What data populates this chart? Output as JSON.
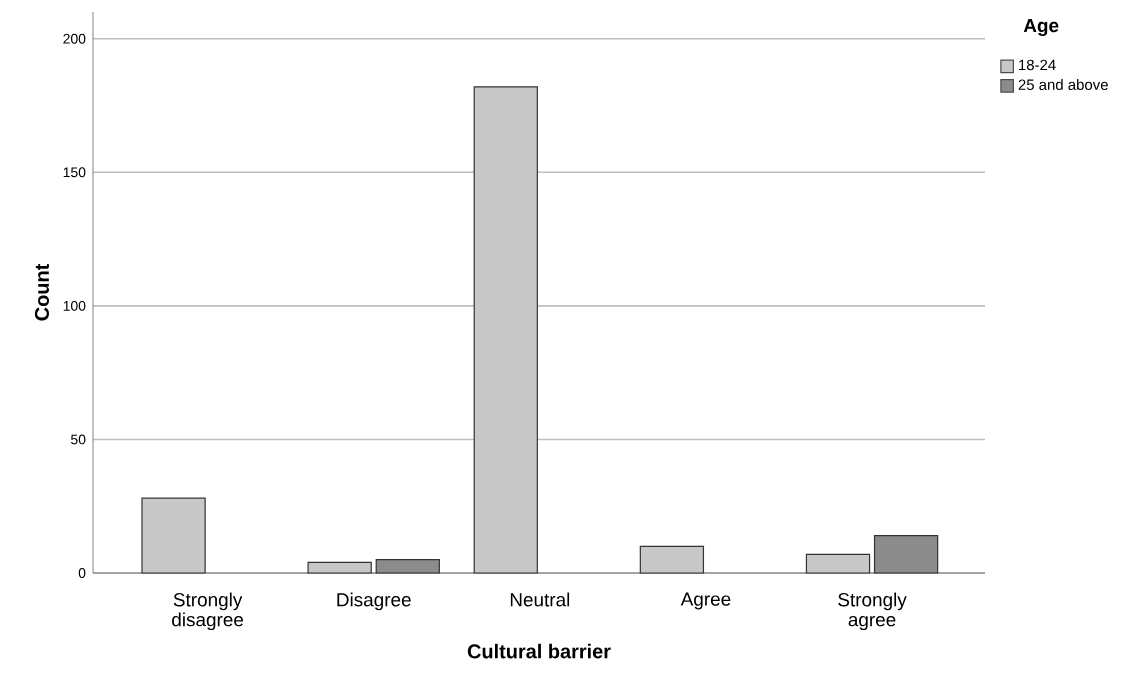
{
  "chart_data": {
    "type": "bar",
    "xlabel": "Cultural barrier",
    "ylabel": "Count",
    "legend_title": "Age",
    "categories": [
      "Strongly disagree",
      "Disagree",
      "Neutral",
      "Agree",
      "Strongly agree"
    ],
    "series": [
      {
        "name": "18-24",
        "color": "#c8c8c8",
        "values": [
          28,
          4,
          182,
          10,
          7
        ]
      },
      {
        "name": "25 and above",
        "color": "#8c8c8c",
        "values": [
          null,
          5,
          null,
          null,
          14
        ]
      }
    ],
    "ylim": [
      0,
      210
    ],
    "yticks": [
      0,
      50,
      100,
      150,
      200
    ],
    "grid": "y",
    "legend": "top right"
  }
}
